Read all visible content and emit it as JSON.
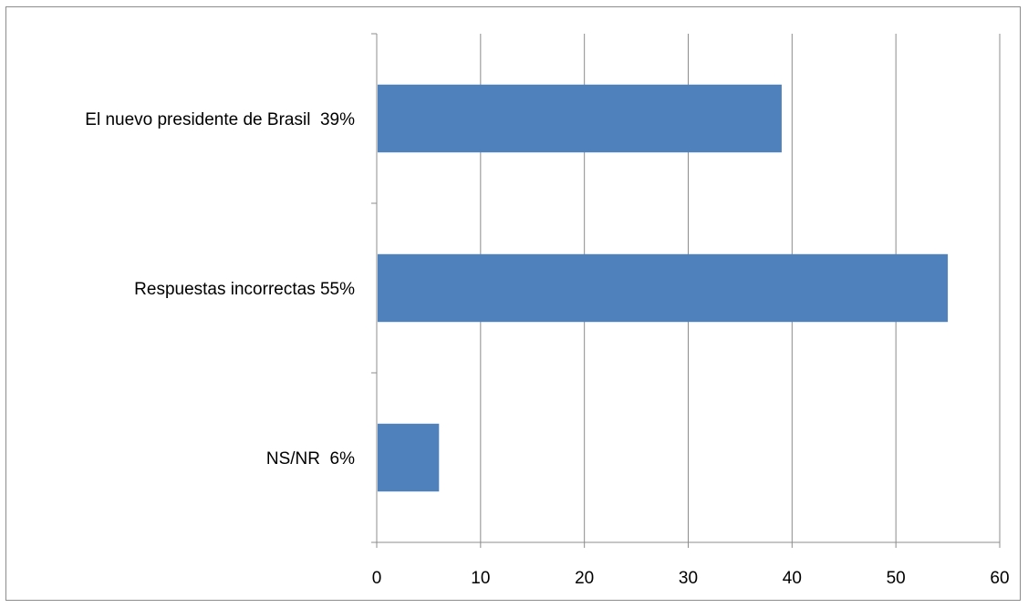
{
  "chart_data": {
    "type": "bar",
    "orientation": "horizontal",
    "categories": [
      "El nuevo presidente de Brasil  39%",
      "Respuestas incorrectas 55%",
      "NS/NR  6%"
    ],
    "values": [
      39,
      55,
      6
    ],
    "xlim": [
      0,
      60
    ],
    "x_ticks": [
      "0",
      "10",
      "20",
      "30",
      "40",
      "50",
      "60"
    ],
    "grid": "vertical",
    "bar_color": "#4F81BD",
    "grid_color": "#8c8c8c"
  }
}
